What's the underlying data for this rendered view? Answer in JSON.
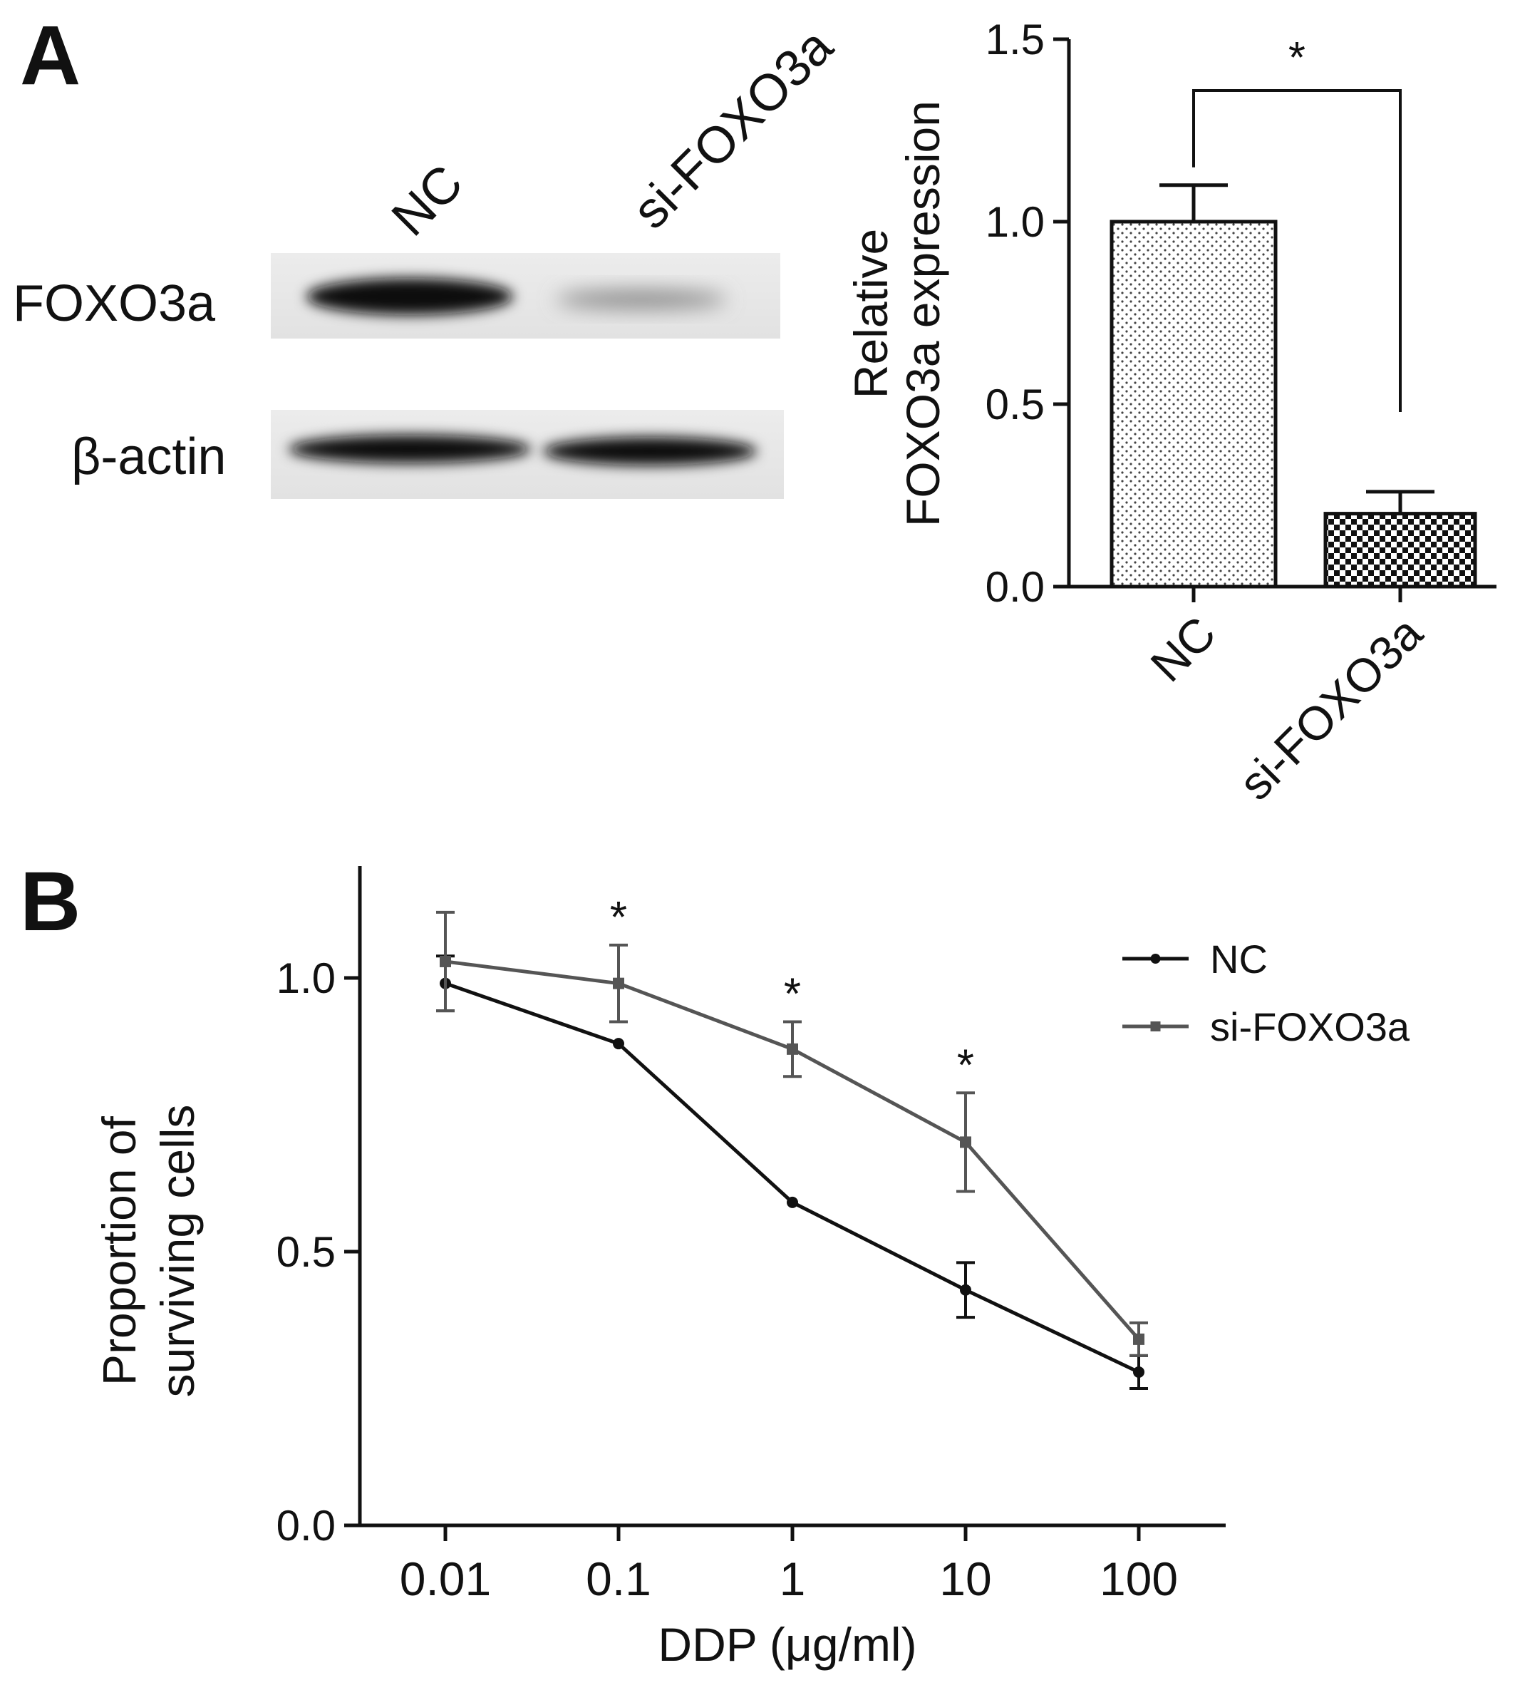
{
  "panel_a": {
    "label": "A",
    "blot": {
      "lanes": [
        "NC",
        "si-FOXO3a"
      ],
      "rows": [
        "FOXO3a",
        "β-actin"
      ]
    }
  },
  "panel_b": {
    "label": "B"
  },
  "chart_data": [
    {
      "type": "bar",
      "categories": [
        "NC",
        "si-FOXO3a"
      ],
      "values": [
        1.0,
        0.2
      ],
      "errors": [
        0.1,
        0.06
      ],
      "patterns": [
        "dotted",
        "checkered"
      ],
      "ylabel": [
        "Relative",
        "FOXO3a expression"
      ],
      "ylim": [
        0,
        1.5
      ],
      "yticks": [
        "0.0",
        "0.5",
        "1.0",
        "1.5"
      ],
      "significance": {
        "between": [
          "NC",
          "si-FOXO3a"
        ],
        "label": "*"
      }
    },
    {
      "type": "line",
      "x": [
        "0.01",
        "0.1",
        "1",
        "10",
        "100"
      ],
      "xscale": "log",
      "series": [
        {
          "name": "NC",
          "values": [
            0.99,
            0.88,
            0.59,
            0.43,
            0.28
          ],
          "errors": [
            0.05,
            0.0,
            0.0,
            0.05,
            0.03
          ],
          "color": "#111111",
          "marker": "circle"
        },
        {
          "name": "si-FOXO3a",
          "values": [
            1.03,
            0.99,
            0.87,
            0.7,
            0.34
          ],
          "errors": [
            0.09,
            0.07,
            0.05,
            0.09,
            0.03
          ],
          "color": "#555555",
          "marker": "square"
        }
      ],
      "xlabel": "DDP (μg/ml)",
      "ylabel": [
        "Proportion of",
        "surviving cells"
      ],
      "ylim": [
        0,
        1.2
      ],
      "yticks": [
        "0.0",
        "0.5",
        "1.0"
      ],
      "significance": [
        {
          "x": "0.1",
          "label": "*"
        },
        {
          "x": "1",
          "label": "*"
        },
        {
          "x": "10",
          "label": "*"
        }
      ],
      "legend": "top-right"
    }
  ]
}
